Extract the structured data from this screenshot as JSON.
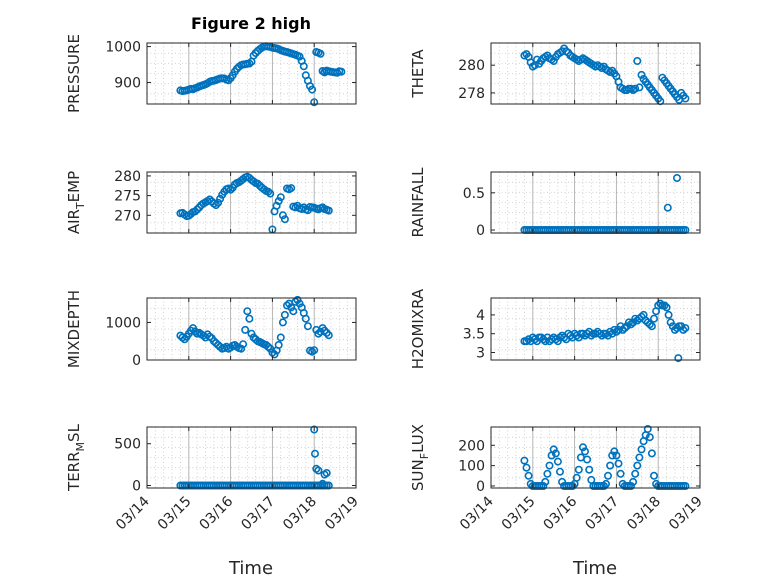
{
  "figure": {
    "title": "Figure 2 high",
    "colors": {
      "marker": "#0072BD",
      "axis": "#262626"
    }
  },
  "chart_data": [
    {
      "type": "scatter",
      "ylabel": "PRESSURE",
      "xlim": [
        0,
        5
      ],
      "ylim": [
        840,
        1010
      ],
      "yticks": [
        900,
        1000
      ],
      "title": "Figure 2 high",
      "x": [
        0.8,
        0.85,
        0.9,
        0.95,
        1.0,
        1.05,
        1.1,
        1.15,
        1.2,
        1.25,
        1.3,
        1.35,
        1.4,
        1.45,
        1.5,
        1.55,
        1.6,
        1.65,
        1.7,
        1.75,
        1.8,
        1.85,
        1.9,
        1.95,
        2.0,
        2.05,
        2.1,
        2.15,
        2.2,
        2.25,
        2.3,
        2.35,
        2.4,
        2.45,
        2.5,
        2.55,
        2.6,
        2.65,
        2.7,
        2.75,
        2.8,
        2.85,
        2.9,
        2.95,
        3.0,
        3.05,
        3.1,
        3.15,
        3.2,
        3.25,
        3.3,
        3.35,
        3.4,
        3.45,
        3.5,
        3.55,
        3.6,
        3.65,
        3.7,
        3.75,
        3.8,
        3.85,
        3.9,
        3.95,
        4.0,
        4.05,
        4.1,
        4.15,
        4.2,
        4.25,
        4.25,
        4.3,
        4.3,
        4.35,
        4.4,
        4.45,
        4.5,
        4.55,
        4.6,
        4.65
      ],
      "y": [
        878,
        876,
        877,
        878,
        880,
        882,
        881,
        884,
        886,
        889,
        891,
        893,
        895,
        898,
        902,
        904,
        905,
        907,
        909,
        911,
        912,
        911,
        908,
        906,
        912,
        920,
        930,
        938,
        944,
        948,
        950,
        951,
        952,
        953,
        958,
        975,
        982,
        988,
        993,
        997,
        1000,
        1001,
        1000,
        999,
        997,
        996,
        995,
        993,
        990,
        988,
        986,
        985,
        983,
        981,
        979,
        977,
        975,
        972,
        960,
        945,
        920,
        905,
        890,
        880,
        845,
        985,
        983,
        980,
        932,
        930,
        928,
        932,
        933,
        931,
        930,
        929,
        928,
        927,
        931,
        930
      ]
    },
    {
      "type": "scatter",
      "ylabel": "AIR_TEMP",
      "xlim": [
        0,
        5
      ],
      "ylim": [
        265.5,
        281
      ],
      "yticks": [
        270,
        275,
        280
      ],
      "x": [
        0.8,
        0.85,
        0.9,
        0.95,
        1.0,
        1.05,
        1.1,
        1.15,
        1.2,
        1.25,
        1.3,
        1.35,
        1.4,
        1.45,
        1.5,
        1.55,
        1.6,
        1.65,
        1.7,
        1.75,
        1.8,
        1.85,
        1.9,
        1.95,
        2.0,
        2.05,
        2.1,
        2.15,
        2.2,
        2.25,
        2.3,
        2.35,
        2.4,
        2.45,
        2.5,
        2.55,
        2.6,
        2.65,
        2.7,
        2.75,
        2.8,
        2.85,
        2.9,
        2.95,
        3.0,
        3.05,
        3.1,
        3.15,
        3.2,
        3.25,
        3.3,
        3.35,
        3.4,
        3.45,
        3.5,
        3.55,
        3.6,
        3.65,
        3.7,
        3.75,
        3.8,
        3.85,
        3.9,
        3.95,
        4.0,
        4.05,
        4.1,
        4.15,
        4.2,
        4.25,
        4.3,
        4.35
      ],
      "y": [
        270.5,
        270.6,
        270.2,
        269.8,
        269.9,
        270.3,
        270.8,
        271.0,
        271.5,
        272.0,
        272.6,
        273.0,
        273.3,
        273.6,
        274.0,
        273.5,
        273.0,
        272.6,
        273.2,
        274.2,
        275.2,
        276.0,
        276.6,
        276.8,
        276.5,
        277.0,
        277.8,
        278.2,
        278.4,
        278.8,
        279.2,
        279.6,
        279.8,
        279.5,
        279.0,
        278.6,
        278.2,
        278.0,
        277.5,
        277.0,
        276.6,
        276.2,
        276.0,
        275.5,
        266.4,
        271.0,
        272.4,
        273.6,
        274.6,
        270.0,
        269.0,
        276.8,
        276.6,
        276.9,
        272.2,
        272.0,
        272.4,
        271.8,
        271.6,
        272.0,
        271.5,
        271.3,
        272.1,
        272.0,
        271.9,
        271.7,
        271.5,
        271.8,
        272.0,
        271.6,
        271.4,
        271.2
      ]
    },
    {
      "type": "scatter",
      "ylabel": "MIXDEPTH",
      "xlim": [
        0,
        5
      ],
      "ylim": [
        0,
        1650
      ],
      "yticks": [
        0,
        1000
      ],
      "x": [
        0.8,
        0.85,
        0.9,
        0.95,
        1.0,
        1.05,
        1.1,
        1.15,
        1.2,
        1.25,
        1.3,
        1.35,
        1.4,
        1.45,
        1.5,
        1.55,
        1.6,
        1.65,
        1.7,
        1.75,
        1.8,
        1.85,
        1.9,
        1.95,
        2.0,
        2.05,
        2.1,
        2.15,
        2.2,
        2.25,
        2.3,
        2.35,
        2.4,
        2.45,
        2.5,
        2.55,
        2.6,
        2.65,
        2.7,
        2.75,
        2.8,
        2.85,
        2.9,
        2.95,
        3.0,
        3.05,
        3.1,
        3.15,
        3.2,
        3.25,
        3.3,
        3.35,
        3.4,
        3.45,
        3.5,
        3.55,
        3.6,
        3.65,
        3.7,
        3.75,
        3.8,
        3.85,
        3.9,
        3.95,
        4.0,
        4.05,
        4.1,
        4.15,
        4.2,
        4.25,
        4.3,
        4.35
      ],
      "y": [
        650,
        600,
        550,
        620,
        700,
        780,
        850,
        760,
        700,
        720,
        680,
        650,
        600,
        680,
        620,
        580,
        500,
        450,
        400,
        350,
        300,
        320,
        350,
        300,
        330,
        380,
        400,
        350,
        320,
        300,
        420,
        800,
        1300,
        1100,
        700,
        600,
        550,
        500,
        480,
        450,
        420,
        400,
        350,
        300,
        200,
        150,
        250,
        400,
        600,
        1000,
        1200,
        1450,
        1500,
        1400,
        1300,
        1550,
        1600,
        1500,
        1400,
        1250,
        1100,
        900,
        250,
        220,
        260,
        800,
        700,
        750,
        850,
        780,
        720,
        660
      ]
    },
    {
      "type": "scatter",
      "ylabel": "TERR_MSL",
      "xlim": [
        0,
        5
      ],
      "ylim": [
        -30,
        700
      ],
      "yticks": [
        0,
        500
      ],
      "x": [
        0.8,
        0.85,
        0.9,
        0.95,
        1.0,
        1.05,
        1.1,
        1.15,
        1.2,
        1.25,
        1.3,
        1.35,
        1.4,
        1.45,
        1.5,
        1.55,
        1.6,
        1.65,
        1.7,
        1.75,
        1.8,
        1.85,
        1.9,
        1.95,
        2.0,
        2.05,
        2.1,
        2.15,
        2.2,
        2.25,
        2.3,
        2.35,
        2.4,
        2.45,
        2.5,
        2.55,
        2.6,
        2.65,
        2.7,
        2.75,
        2.8,
        2.85,
        2.9,
        2.95,
        3.0,
        3.05,
        3.1,
        3.15,
        3.2,
        3.25,
        3.3,
        3.35,
        3.4,
        3.45,
        3.5,
        3.55,
        3.6,
        3.65,
        3.7,
        3.75,
        3.8,
        3.85,
        3.9,
        3.95,
        4.0,
        4.05,
        4.1,
        4.15,
        4.2,
        4.25,
        4.3,
        4.35,
        4.0,
        4.02,
        4.05,
        4.1,
        4.15,
        4.2,
        4.25,
        4.3
      ],
      "y": [
        0,
        0,
        0,
        0,
        0,
        0,
        0,
        0,
        0,
        0,
        0,
        0,
        0,
        0,
        0,
        0,
        0,
        0,
        0,
        0,
        0,
        0,
        0,
        0,
        0,
        0,
        0,
        0,
        0,
        0,
        0,
        0,
        0,
        0,
        0,
        0,
        0,
        0,
        0,
        0,
        0,
        0,
        0,
        0,
        0,
        0,
        0,
        0,
        0,
        0,
        0,
        0,
        0,
        0,
        0,
        0,
        0,
        0,
        0,
        0,
        0,
        0,
        0,
        0,
        0,
        0,
        0,
        0,
        0,
        0,
        0,
        0,
        670,
        380,
        200,
        180,
        0,
        20,
        130,
        150
      ]
    },
    {
      "type": "scatter",
      "ylabel": "THETA",
      "xlim": [
        0,
        5
      ],
      "ylim": [
        277.2,
        281.6
      ],
      "yticks": [
        278,
        280
      ],
      "x": [
        0.8,
        0.85,
        0.9,
        0.95,
        1.0,
        1.05,
        1.1,
        1.15,
        1.2,
        1.25,
        1.3,
        1.35,
        1.4,
        1.45,
        1.5,
        1.55,
        1.6,
        1.65,
        1.7,
        1.75,
        1.8,
        1.85,
        1.9,
        1.95,
        2.0,
        2.05,
        2.1,
        2.15,
        2.2,
        2.25,
        2.3,
        2.35,
        2.4,
        2.45,
        2.5,
        2.55,
        2.6,
        2.65,
        2.7,
        2.75,
        2.8,
        2.85,
        2.9,
        2.95,
        3.0,
        3.05,
        3.1,
        3.15,
        3.2,
        3.25,
        3.3,
        3.35,
        3.4,
        3.45,
        3.5,
        3.55,
        3.6,
        3.65,
        3.7,
        3.75,
        3.8,
        3.85,
        3.9,
        3.95,
        4.0,
        4.05,
        4.1,
        4.15,
        4.2,
        4.25,
        4.3,
        4.35,
        4.4,
        4.45,
        4.5,
        4.55,
        4.6,
        4.65
      ],
      "y": [
        280.7,
        280.8,
        280.6,
        280.2,
        279.9,
        280.0,
        280.4,
        280.1,
        280.3,
        280.5,
        280.6,
        280.7,
        280.5,
        280.4,
        280.3,
        280.6,
        280.8,
        280.9,
        281.0,
        281.2,
        281.0,
        280.9,
        280.7,
        280.6,
        280.5,
        280.4,
        280.3,
        280.4,
        280.5,
        280.4,
        280.3,
        280.2,
        280.1,
        280.0,
        279.9,
        280.0,
        279.9,
        279.8,
        279.9,
        279.7,
        279.6,
        279.5,
        279.6,
        279.4,
        279.2,
        278.8,
        278.4,
        278.3,
        278.2,
        278.2,
        278.3,
        278.3,
        278.2,
        278.3,
        280.3,
        278.4,
        279.3,
        279.0,
        278.8,
        278.6,
        278.4,
        278.2,
        278.0,
        277.8,
        277.6,
        277.4,
        279.1,
        278.9,
        278.7,
        278.5,
        278.3,
        278.1,
        277.9,
        277.7,
        277.5,
        278.0,
        277.8,
        277.6
      ]
    },
    {
      "type": "scatter",
      "ylabel": "RAINFALL",
      "xlim": [
        0,
        5
      ],
      "ylim": [
        -0.04,
        0.78
      ],
      "yticks": [
        0,
        0.5
      ],
      "x": [
        0.8,
        0.85,
        0.9,
        0.95,
        1.0,
        1.05,
        1.1,
        1.15,
        1.2,
        1.25,
        1.3,
        1.35,
        1.4,
        1.45,
        1.5,
        1.55,
        1.6,
        1.65,
        1.7,
        1.75,
        1.8,
        1.85,
        1.9,
        1.95,
        2.0,
        2.05,
        2.1,
        2.15,
        2.2,
        2.25,
        2.3,
        2.35,
        2.4,
        2.45,
        2.5,
        2.55,
        2.6,
        2.65,
        2.7,
        2.75,
        2.8,
        2.85,
        2.9,
        2.95,
        3.0,
        3.05,
        3.1,
        3.15,
        3.2,
        3.25,
        3.3,
        3.35,
        3.4,
        3.45,
        3.5,
        3.55,
        3.6,
        3.65,
        3.7,
        3.75,
        3.8,
        3.85,
        3.9,
        3.95,
        4.0,
        4.05,
        4.1,
        4.15,
        4.2,
        4.25,
        4.3,
        4.35,
        4.4,
        4.45,
        4.5,
        4.55,
        4.6,
        4.65,
        4.23,
        4.45
      ],
      "y": [
        0,
        0,
        0,
        0,
        0,
        0,
        0,
        0,
        0,
        0,
        0,
        0,
        0,
        0,
        0,
        0,
        0,
        0,
        0,
        0,
        0,
        0,
        0,
        0,
        0,
        0,
        0,
        0,
        0,
        0,
        0,
        0,
        0,
        0,
        0,
        0,
        0,
        0,
        0,
        0,
        0,
        0,
        0,
        0,
        0,
        0,
        0,
        0,
        0,
        0,
        0,
        0,
        0,
        0,
        0,
        0,
        0,
        0,
        0,
        0,
        0,
        0,
        0,
        0,
        0,
        0,
        0,
        0,
        0,
        0,
        0,
        0,
        0,
        0,
        0,
        0,
        0,
        0,
        0.3,
        0.7
      ]
    },
    {
      "type": "scatter",
      "ylabel": "H2OMIXRA",
      "xlim": [
        0,
        5
      ],
      "ylim": [
        2.8,
        4.45
      ],
      "yticks": [
        3,
        3.5,
        4
      ],
      "x": [
        0.8,
        0.85,
        0.9,
        0.95,
        1.0,
        1.05,
        1.1,
        1.15,
        1.2,
        1.25,
        1.3,
        1.35,
        1.4,
        1.45,
        1.5,
        1.55,
        1.6,
        1.65,
        1.7,
        1.75,
        1.8,
        1.85,
        1.9,
        1.95,
        2.0,
        2.05,
        2.1,
        2.15,
        2.2,
        2.25,
        2.3,
        2.35,
        2.4,
        2.45,
        2.5,
        2.55,
        2.6,
        2.65,
        2.7,
        2.75,
        2.8,
        2.85,
        2.9,
        2.95,
        3.0,
        3.05,
        3.1,
        3.15,
        3.2,
        3.25,
        3.3,
        3.35,
        3.4,
        3.45,
        3.5,
        3.55,
        3.6,
        3.65,
        3.7,
        3.75,
        3.8,
        3.85,
        3.9,
        3.95,
        4.0,
        4.05,
        4.1,
        4.15,
        4.2,
        4.25,
        4.3,
        4.35,
        4.4,
        4.45,
        4.5,
        4.55,
        4.6,
        4.65,
        4.48
      ],
      "y": [
        3.3,
        3.3,
        3.35,
        3.3,
        3.4,
        3.35,
        3.3,
        3.4,
        3.4,
        3.35,
        3.3,
        3.4,
        3.3,
        3.35,
        3.4,
        3.35,
        3.3,
        3.4,
        3.45,
        3.4,
        3.35,
        3.5,
        3.45,
        3.4,
        3.5,
        3.45,
        3.4,
        3.5,
        3.5,
        3.45,
        3.5,
        3.55,
        3.45,
        3.5,
        3.5,
        3.55,
        3.5,
        3.45,
        3.5,
        3.5,
        3.45,
        3.55,
        3.5,
        3.6,
        3.55,
        3.6,
        3.7,
        3.6,
        3.65,
        3.7,
        3.8,
        3.75,
        3.8,
        3.9,
        3.85,
        3.9,
        3.95,
        4.0,
        3.85,
        3.8,
        3.75,
        3.7,
        3.9,
        4.1,
        4.25,
        4.3,
        4.25,
        4.25,
        4.2,
        4.0,
        3.8,
        3.7,
        3.6,
        3.65,
        3.7,
        3.7,
        3.6,
        3.65,
        2.85
      ]
    },
    {
      "type": "scatter",
      "ylabel": "SUN_FLUX",
      "xlim": [
        0,
        5
      ],
      "ylim": [
        -10,
        290
      ],
      "yticks": [
        0,
        100,
        200
      ],
      "x": [
        0.8,
        0.85,
        0.9,
        0.95,
        1.0,
        1.05,
        1.1,
        1.15,
        1.2,
        1.25,
        1.3,
        1.35,
        1.4,
        1.45,
        1.5,
        1.55,
        1.6,
        1.65,
        1.7,
        1.75,
        1.8,
        1.85,
        1.9,
        1.95,
        2.0,
        2.05,
        2.1,
        2.15,
        2.2,
        2.25,
        2.3,
        2.35,
        2.4,
        2.45,
        2.5,
        2.55,
        2.6,
        2.65,
        2.7,
        2.75,
        2.8,
        2.85,
        2.9,
        2.95,
        3.0,
        3.05,
        3.1,
        3.15,
        3.2,
        3.25,
        3.3,
        3.35,
        3.4,
        3.45,
        3.5,
        3.55,
        3.6,
        3.65,
        3.7,
        3.75,
        3.8,
        3.85,
        3.9,
        3.95,
        4.0,
        4.05,
        4.1,
        4.15,
        4.2,
        4.25,
        4.3,
        4.35,
        4.4,
        4.45,
        4.5,
        4.55,
        4.6,
        4.65
      ],
      "y": [
        125,
        90,
        50,
        10,
        0,
        0,
        0,
        0,
        0,
        0,
        20,
        60,
        100,
        150,
        180,
        160,
        120,
        70,
        20,
        0,
        0,
        0,
        0,
        0,
        10,
        40,
        80,
        140,
        190,
        170,
        130,
        80,
        30,
        0,
        0,
        0,
        0,
        0,
        0,
        10,
        50,
        100,
        150,
        170,
        150,
        110,
        60,
        10,
        0,
        0,
        0,
        0,
        20,
        60,
        100,
        140,
        180,
        220,
        250,
        280,
        240,
        160,
        50,
        10,
        0,
        0,
        0,
        0,
        0,
        0,
        0,
        0,
        0,
        0,
        0,
        0,
        0,
        0
      ]
    }
  ],
  "axes_common": {
    "xticklabels": [
      "03/14",
      "03/15",
      "03/16",
      "03/17",
      "03/18",
      "03/19"
    ],
    "xticks": [
      0,
      1,
      2,
      3,
      4,
      5
    ],
    "xlabel": "Time",
    "grid": "on"
  }
}
